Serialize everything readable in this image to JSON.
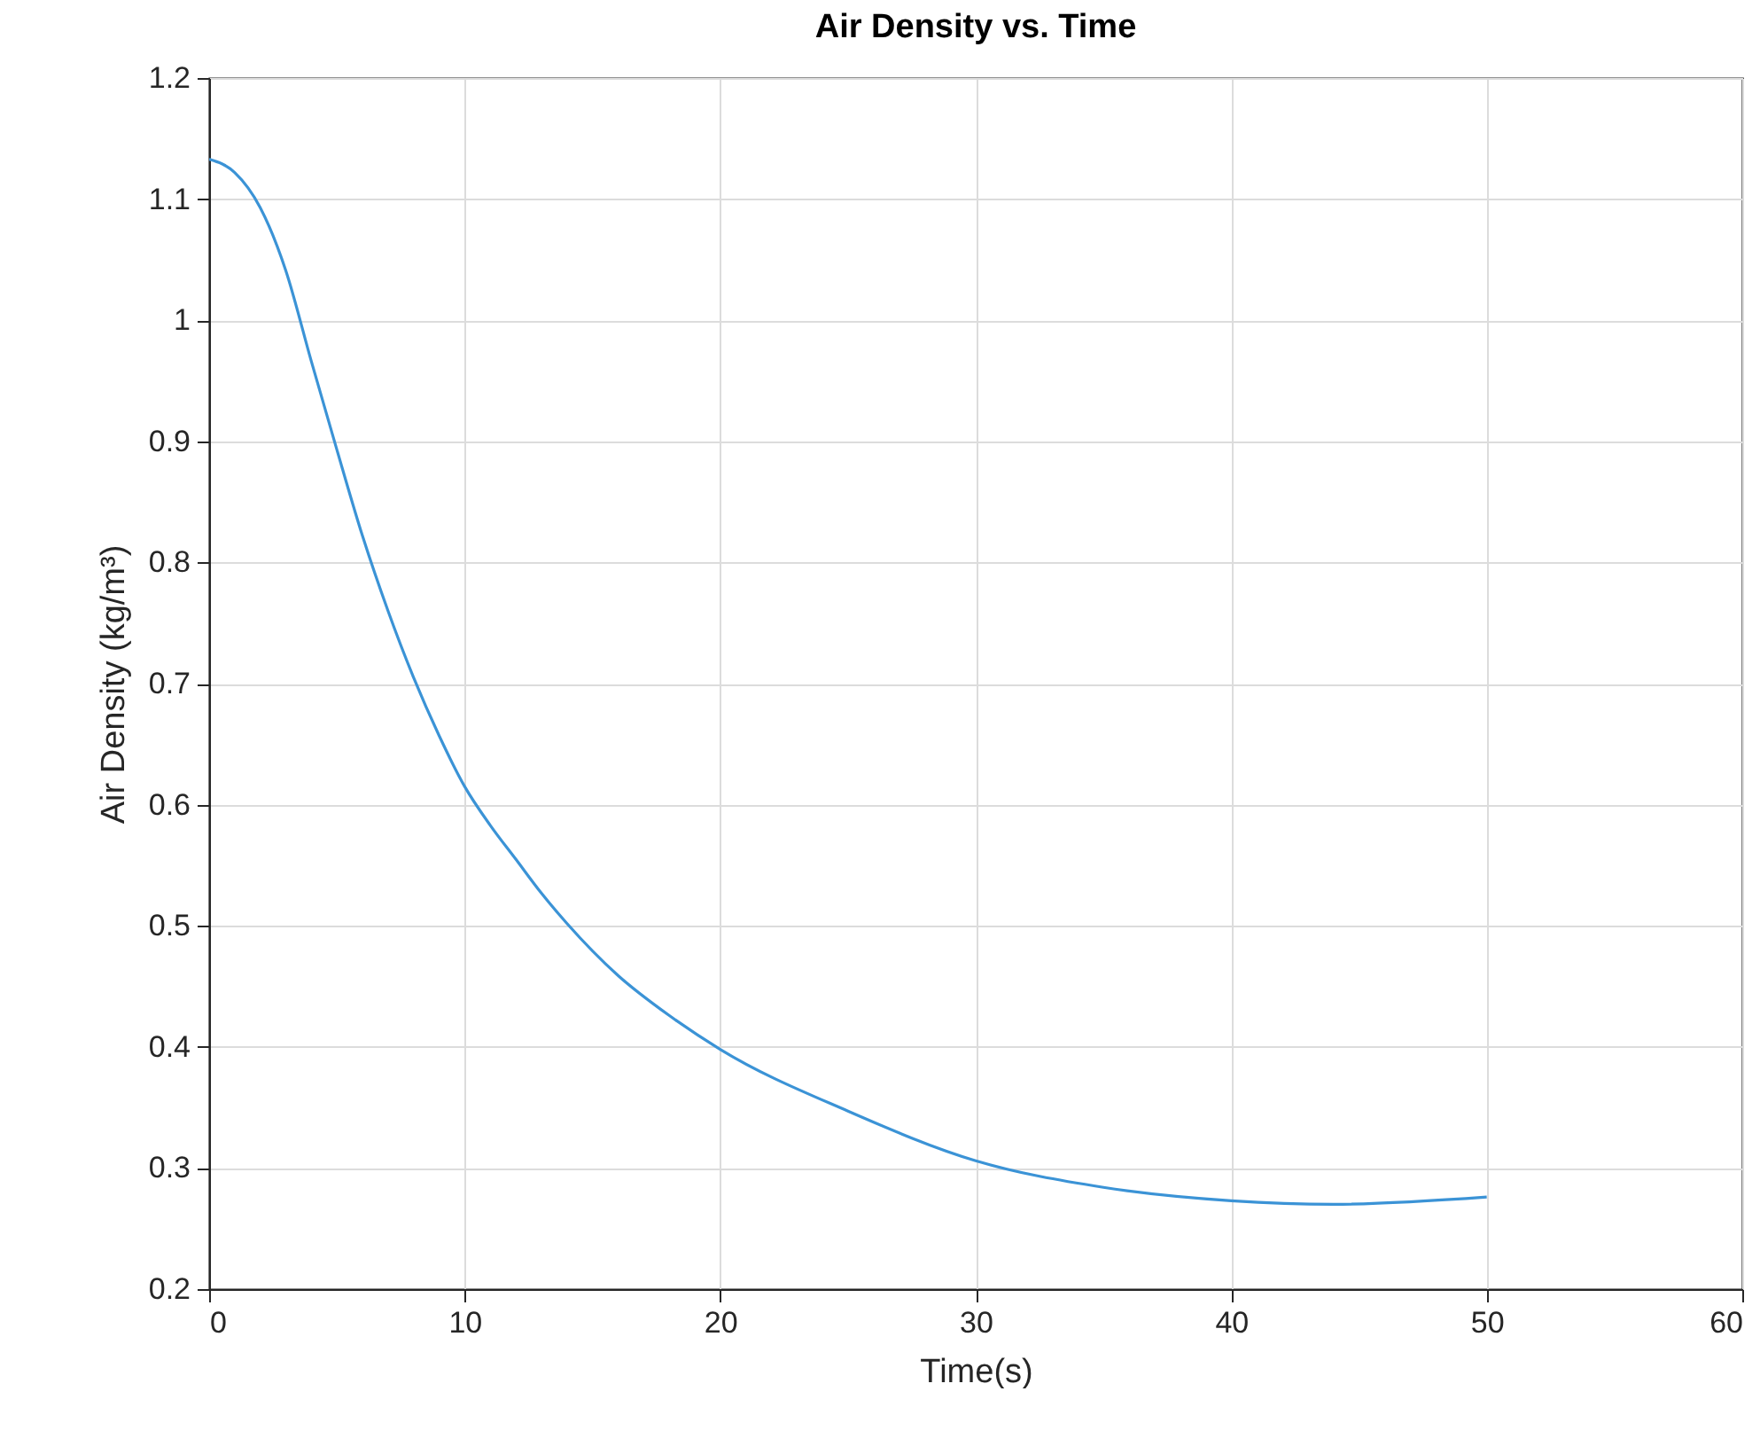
{
  "chart_data": {
    "type": "line",
    "title": "Air Density vs. Time",
    "xlabel": "Time(s)",
    "ylabel": "Air Density (kg/m³)",
    "x": [
      0,
      1,
      2,
      3,
      4,
      5,
      6,
      7,
      8,
      9,
      10,
      11,
      12,
      13,
      14,
      16,
      18,
      20,
      25,
      30,
      35,
      40,
      44,
      50
    ],
    "series": [
      {
        "color": "#3b93d6",
        "values": [
          1.133,
          1.122,
          1.093,
          1.041,
          0.966,
          0.893,
          0.822,
          0.76,
          0.705,
          0.657,
          0.615,
          0.583,
          0.555,
          0.527,
          0.502,
          0.459,
          0.426,
          0.398,
          0.347,
          0.306,
          0.284,
          0.273,
          0.27,
          0.276
        ]
      }
    ],
    "xlim": [
      0,
      60
    ],
    "xticks": [
      0,
      10,
      20,
      30,
      40,
      50,
      60
    ],
    "ylim": [
      0.2,
      1.2
    ],
    "yticks": [
      0.2,
      0.3,
      0.4,
      0.5,
      0.6,
      0.7,
      0.8,
      0.9,
      1,
      1.1,
      1.2
    ],
    "grid": true
  }
}
